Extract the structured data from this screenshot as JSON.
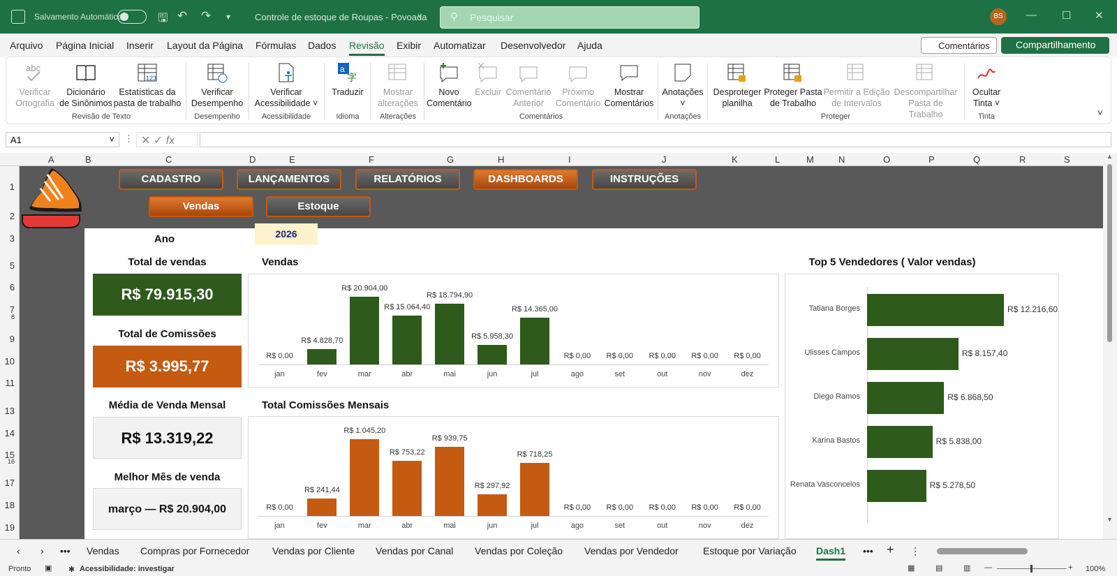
{
  "titlebar": {
    "autosave_label": "Salvamento Automático",
    "doc_title": "Controle de estoque de Roupas - Povoada",
    "search_placeholder": "Pesquisar",
    "user_initials": "BS"
  },
  "menu": {
    "items": [
      "Arquivo",
      "Página Inicial",
      "Inserir",
      "Layout da Página",
      "Fórmulas",
      "Dados",
      "Revisão",
      "Exibir",
      "Automatizar",
      "Desenvolvedor",
      "Ajuda"
    ],
    "active": "Revisão",
    "comments_btn": "Comentários",
    "share_btn": "Compartilhamento"
  },
  "ribbon": {
    "buttons": [
      {
        "l1": "Verificar",
        "l2": "Ortografia",
        "disabled": true
      },
      {
        "l1": "Dicionário",
        "l2": "de Sinônimos",
        "disabled": false
      },
      {
        "l1": "Estatísticas da",
        "l2": "pasta de trabalho",
        "disabled": false
      },
      {
        "l1": "Verificar",
        "l2": "Desempenho",
        "disabled": false
      },
      {
        "l1": "Verificar",
        "l2": "Acessibilidade ˅",
        "disabled": false
      },
      {
        "l1": "Traduzir",
        "l2": "",
        "disabled": false
      },
      {
        "l1": "Mostrar",
        "l2": "alterações",
        "disabled": true
      },
      {
        "l1": "Novo",
        "l2": "Comentário",
        "disabled": false
      },
      {
        "l1": "Excluir",
        "l2": "",
        "disabled": true
      },
      {
        "l1": "Comentário",
        "l2": "Anterior",
        "disabled": true
      },
      {
        "l1": "Próximo",
        "l2": "Comentário",
        "disabled": true
      },
      {
        "l1": "Mostrar",
        "l2": "Comentários",
        "disabled": false
      },
      {
        "l1": "Anotações",
        "l2": "˅",
        "disabled": false
      },
      {
        "l1": "Desproteger",
        "l2": "planilha",
        "disabled": false
      },
      {
        "l1": "Proteger Pasta",
        "l2": "de Trabalho",
        "disabled": false
      },
      {
        "l1": "Permitir a Edição",
        "l2": "de Intervalos",
        "disabled": true
      },
      {
        "l1": "Descompartilhar",
        "l2": "Pasta de Trabalho",
        "disabled": true
      },
      {
        "l1": "Ocultar",
        "l2": "Tinta ˅",
        "disabled": false
      }
    ],
    "groups": [
      "Revisão de Texto",
      "Desempenho",
      "Acessibilidade",
      "Idioma",
      "Alterações",
      "Comentários",
      "Anotações",
      "Proteger",
      "Tinta"
    ]
  },
  "formula_bar": {
    "name_box": "A1",
    "fx": "fx",
    "formula": ""
  },
  "columns": [
    "A",
    "B",
    "C",
    "D",
    "E",
    "F",
    "G",
    "H",
    "I",
    "J",
    "K",
    "L",
    "M",
    "N",
    "O",
    "P",
    "Q",
    "R",
    "S"
  ],
  "rows": [
    "1",
    "2",
    "3",
    "5",
    "6",
    "7",
    "8",
    "9",
    "10",
    "11",
    "13",
    "14",
    "15",
    "16",
    "17",
    "18",
    "19"
  ],
  "dashboard": {
    "nav": [
      "CADASTRO",
      "LANÇAMENTOS",
      "RELATÓRIOS",
      "DASHBOARDS",
      "INSTRUÇÕES"
    ],
    "nav_active": "DASHBOARDS",
    "subnav": [
      "Vendas",
      "Estoque"
    ],
    "subnav_active": "Vendas",
    "year_label": "Ano",
    "year_value": "2026",
    "kpis": [
      {
        "label": "Total de vendas",
        "value": "R$ 79.915,30",
        "color": "#2e5a1c",
        "text": "#ffffff"
      },
      {
        "label": "Total de Comissões",
        "value": "R$ 3.995,77",
        "color": "#c55a11",
        "text": "#ffffff"
      },
      {
        "label": "Média de Venda Mensal",
        "value": "R$ 13.319,22",
        "color": "#f2f2f2",
        "text": "#111111"
      },
      {
        "label": "Melhor Mês de venda",
        "value": "março — R$ 20.904,00",
        "color": "#f2f2f2",
        "text": "#111111"
      }
    ]
  },
  "chart_data": [
    {
      "type": "bar",
      "title": "Vendas",
      "categories": [
        "jan",
        "fev",
        "mar",
        "abr",
        "mai",
        "jun",
        "jul",
        "ago",
        "set",
        "out",
        "nov",
        "dez"
      ],
      "values": [
        0,
        4828.7,
        20904.0,
        15064.4,
        18794.9,
        5958.3,
        14365.0,
        0,
        0,
        0,
        0,
        0
      ],
      "labels": [
        "R$ 0,00",
        "R$ 4.828,70",
        "R$ 20.904,00",
        "R$ 15.064,40",
        "R$ 18.794,90",
        "R$ 5.958,30",
        "R$ 14.365,00",
        "R$ 0,00",
        "R$ 0,00",
        "R$ 0,00",
        "R$ 0,00",
        "R$ 0,00"
      ],
      "color": "#2e5a1c",
      "ylim": [
        0,
        20904
      ]
    },
    {
      "type": "bar",
      "title": "Total Comissões Mensais",
      "categories": [
        "jan",
        "fev",
        "mar",
        "abr",
        "mai",
        "jun",
        "jul",
        "ago",
        "set",
        "out",
        "nov",
        "dez"
      ],
      "values": [
        0,
        241.44,
        1045.2,
        753.22,
        939.75,
        297.92,
        718.25,
        0,
        0,
        0,
        0,
        0
      ],
      "labels": [
        "R$ 0,00",
        "R$ 241,44",
        "R$ 1.045,20",
        "R$ 753,22",
        "R$ 939,75",
        "R$ 297,92",
        "R$ 718,25",
        "R$ 0,00",
        "R$ 0,00",
        "R$ 0,00",
        "R$ 0,00",
        "R$ 0,00"
      ],
      "color": "#c55a11",
      "ylim": [
        0,
        1045.2
      ]
    },
    {
      "type": "bar",
      "orientation": "horizontal",
      "title": "Top 5 Vendedores ( Valor vendas)",
      "categories": [
        "Tatiana Borges",
        "Ulisses Campos",
        "Diego Ramos",
        "Karina Bastos",
        "Renata Vasconcelos"
      ],
      "values": [
        12216.6,
        8157.4,
        6868.5,
        5838.0,
        5278.5
      ],
      "labels": [
        "R$ 12.216,60",
        "R$ 8.157,40",
        "R$ 6.868,50",
        "R$ 5.838,00",
        "R$ 5.278,50"
      ],
      "color": "#2e5a1c",
      "ylim": [
        0,
        12216.6
      ]
    }
  ],
  "sheet_tabs": [
    "Vendas",
    "Compras por Fornecedor",
    "Vendas por Cliente",
    "Vendas por Canal",
    "Vendas por Coleção",
    "Vendas por Vendedor",
    "Estoque por Variação",
    "Dash1"
  ],
  "active_tab": "Dash1",
  "status": {
    "ready": "Pronto",
    "accessibility": "Acessibilidade: investigar",
    "zoom": "100%"
  }
}
